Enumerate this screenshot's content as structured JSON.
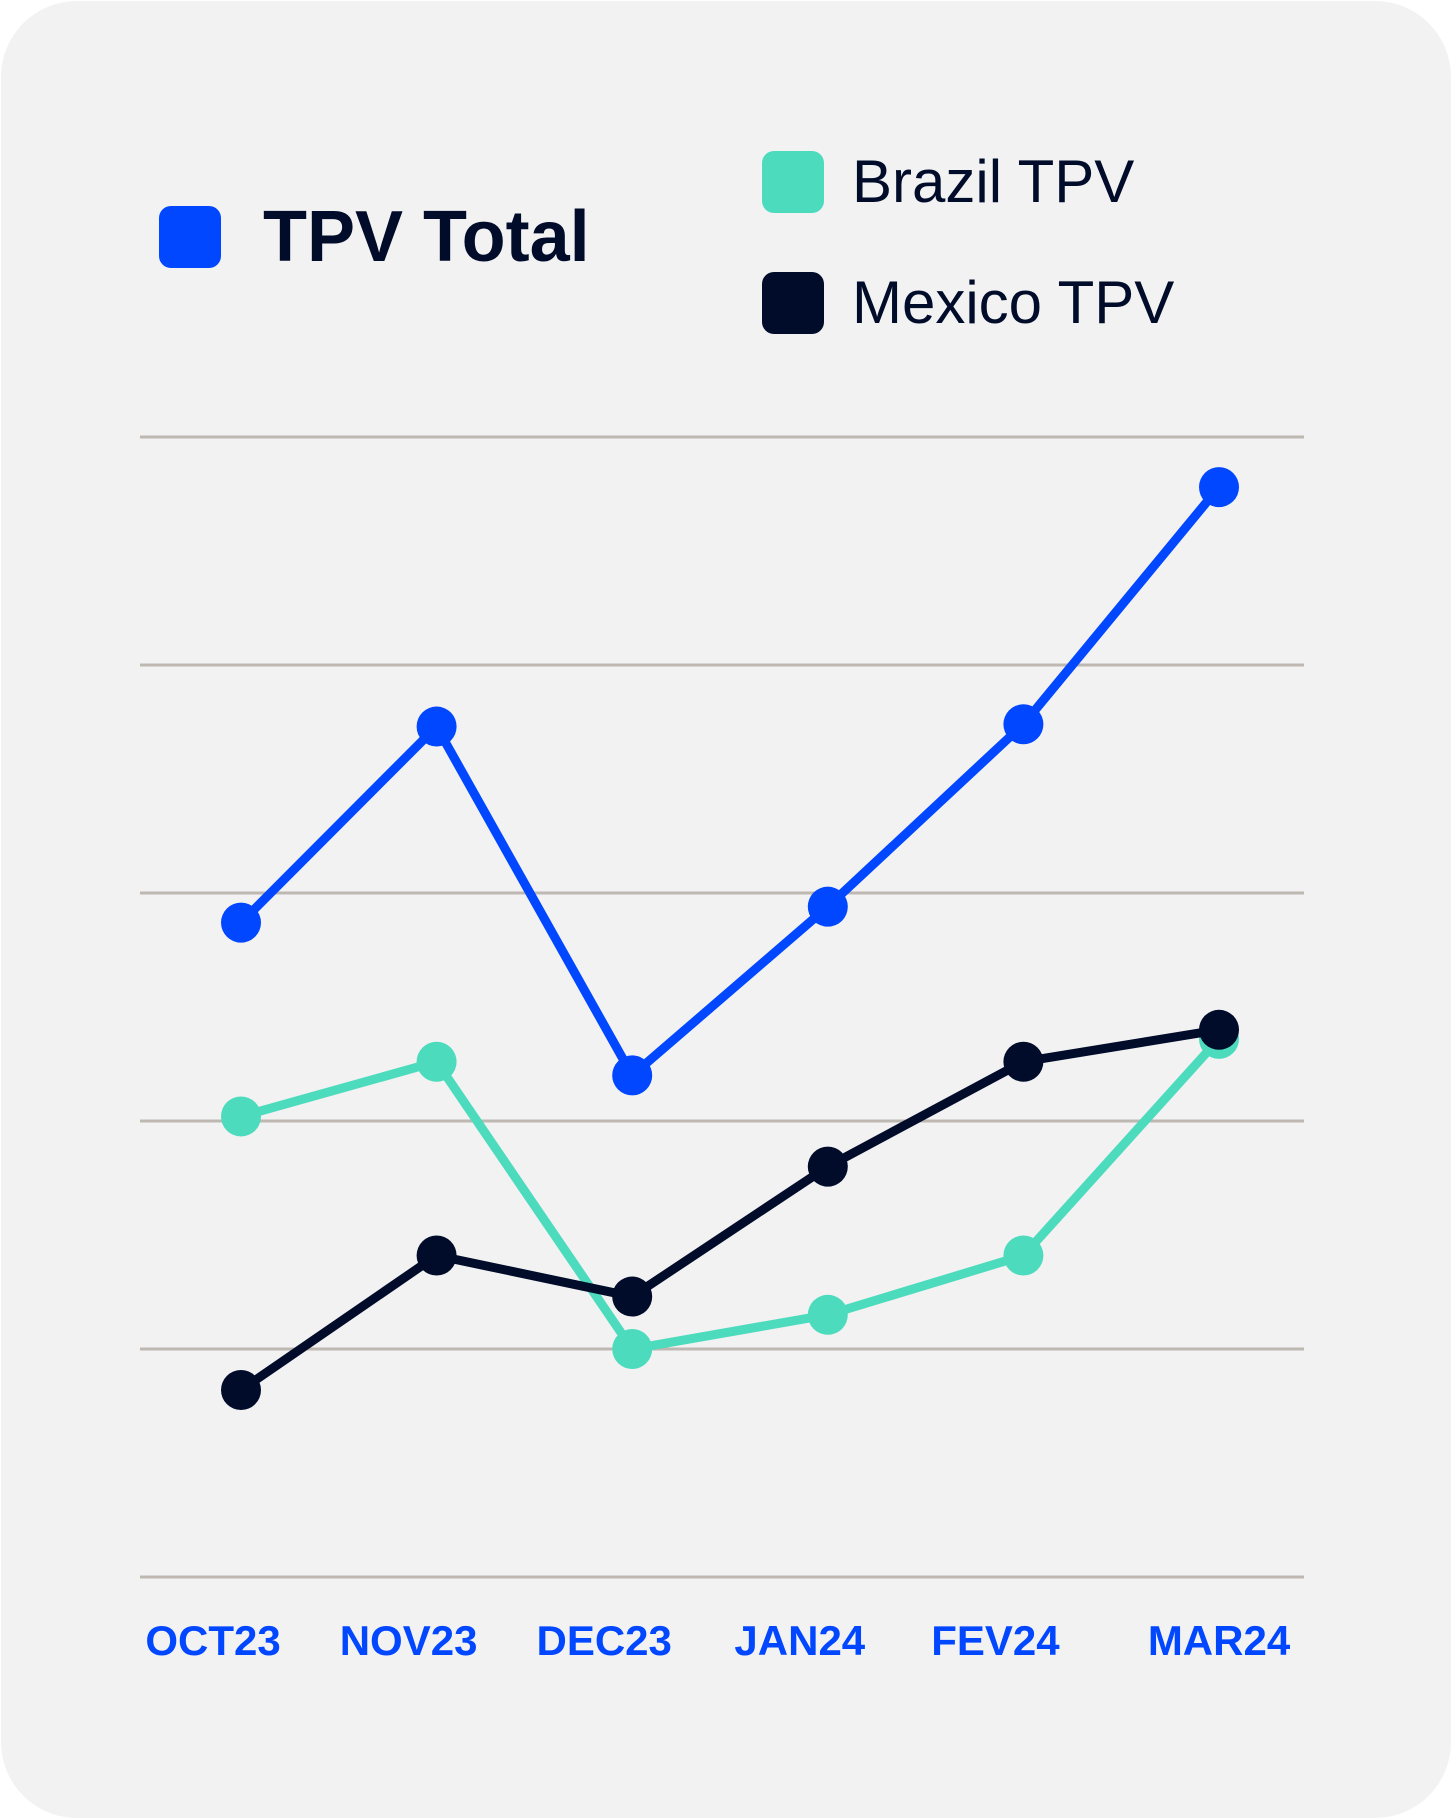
{
  "colors": {
    "background": "#f2f2f2",
    "total": "#0047ff",
    "brazil": "#4ddbbd",
    "mexico": "#010c2a",
    "grid": "#bdb8b2",
    "tick_label": "#0047ff"
  },
  "legend": {
    "total_label": "TPV Total",
    "brazil_label": "Brazil TPV",
    "mexico_label": "Mexico TPV"
  },
  "chart_data": {
    "type": "line",
    "categories": [
      "OCT23",
      "NOV23",
      "DEC23",
      "JAN24",
      "FEV24",
      "MAR24"
    ],
    "ylim": [
      0,
      5
    ],
    "grid": true,
    "legend_position": "top",
    "series": [
      {
        "name": "TPV Total",
        "color": "#0047ff",
        "values": [
          2.87,
          3.73,
          2.2,
          2.94,
          3.74,
          4.78
        ]
      },
      {
        "name": "Brazil TPV",
        "color": "#4ddbbd",
        "values": [
          2.02,
          2.26,
          1.0,
          1.15,
          1.41,
          2.36
        ]
      },
      {
        "name": "Mexico TPV",
        "color": "#010c2a",
        "values": [
          0.82,
          1.41,
          1.23,
          1.8,
          2.26,
          2.4
        ]
      }
    ]
  }
}
